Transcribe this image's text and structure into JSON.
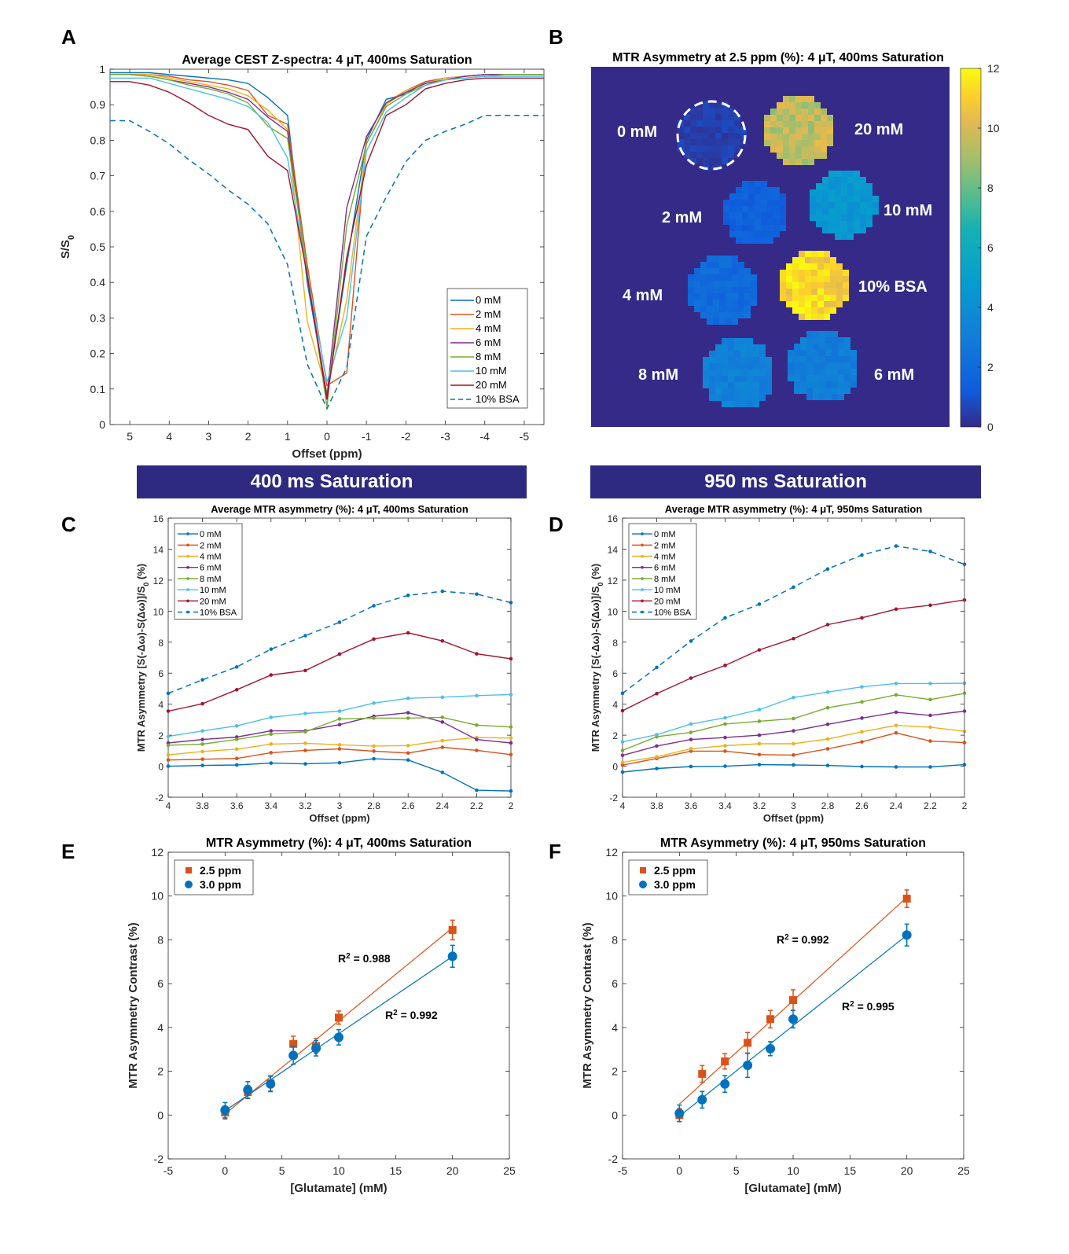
{
  "panels": {
    "A": "A",
    "B": "B",
    "C": "C",
    "D": "D",
    "E": "E",
    "F": "F"
  },
  "banners": {
    "left": "400 ms Saturation",
    "right": "950 ms Saturation"
  },
  "colors": {
    "0 mM": "#0072bd",
    "2 mM": "#d95319",
    "4 mM": "#edb120",
    "6 mM": "#7e2f8e",
    "8 mM": "#77ac30",
    "10 mM": "#4dbeee",
    "20 mM": "#a2142f",
    "10% BSA": "#0072bd",
    "banner": "#2e2a82"
  },
  "chart_data": [
    {
      "id": "A",
      "type": "line",
      "title": "Average CEST Z-spectra: 4μT, 400ms Saturation",
      "xlabel": "Offset (ppm)",
      "ylabel": "S/S0",
      "xlim": [
        5.5,
        -5.5
      ],
      "ylim": [
        0,
        1
      ],
      "xticks": [
        5,
        4,
        3,
        2,
        1,
        0,
        -1,
        -2,
        -3,
        -4,
        -5
      ],
      "xtick_labels": [
        "5",
        "4",
        "3",
        "2",
        "1",
        "0",
        "-1",
        "-2",
        "-3",
        "-4",
        "-5"
      ],
      "yticks": [
        0,
        0.1,
        0.2,
        0.3,
        0.4,
        0.5,
        0.6,
        0.7,
        0.8,
        0.9,
        1
      ],
      "ytick_labels": [
        "0",
        "0.1",
        "0.2",
        "0.3",
        "0.4",
        "0.5",
        "0.6",
        "0.7",
        "0.8",
        "0.9",
        "1"
      ],
      "legend_position": "bottom-right",
      "x": [
        5.5,
        5,
        4.5,
        4,
        3.5,
        3,
        2.5,
        2,
        1.5,
        1,
        0.5,
        0,
        -0.5,
        -1,
        -1.5,
        -2,
        -2.5,
        -3,
        -3.5,
        -4,
        -4.5,
        -5,
        -5.5
      ],
      "series": [
        {
          "name": "0 mM",
          "dashed": false,
          "values": [
            0.99,
            0.99,
            0.99,
            0.985,
            0.98,
            0.975,
            0.97,
            0.96,
            0.92,
            0.87,
            0.4,
            0.08,
            0.45,
            0.8,
            0.915,
            0.93,
            0.965,
            0.975,
            0.98,
            0.985,
            0.985,
            0.985,
            0.985
          ]
        },
        {
          "name": "2 mM",
          "dashed": false,
          "values": [
            0.985,
            0.985,
            0.985,
            0.98,
            0.97,
            0.965,
            0.955,
            0.94,
            0.87,
            0.845,
            0.45,
            0.11,
            0.145,
            0.81,
            0.905,
            0.94,
            0.965,
            0.975,
            0.98,
            0.985,
            0.985,
            0.985,
            0.985
          ]
        },
        {
          "name": "4 mM",
          "dashed": false,
          "values": [
            0.985,
            0.985,
            0.985,
            0.975,
            0.965,
            0.955,
            0.945,
            0.925,
            0.885,
            0.83,
            0.29,
            0.09,
            0.35,
            0.79,
            0.9,
            0.94,
            0.96,
            0.975,
            0.98,
            0.985,
            0.985,
            0.985,
            0.985
          ]
        },
        {
          "name": "6 mM",
          "dashed": false,
          "values": [
            0.985,
            0.985,
            0.98,
            0.97,
            0.96,
            0.95,
            0.935,
            0.915,
            0.865,
            0.825,
            0.42,
            0.08,
            0.61,
            0.81,
            0.905,
            0.935,
            0.96,
            0.97,
            0.98,
            0.985,
            0.985,
            0.985,
            0.985
          ]
        },
        {
          "name": "8 mM",
          "dashed": false,
          "values": [
            0.985,
            0.985,
            0.98,
            0.97,
            0.955,
            0.945,
            0.93,
            0.905,
            0.84,
            0.805,
            0.43,
            0.05,
            0.56,
            0.79,
            0.895,
            0.93,
            0.955,
            0.97,
            0.975,
            0.98,
            0.985,
            0.985,
            0.985
          ]
        },
        {
          "name": "10 mM",
          "dashed": false,
          "values": [
            0.975,
            0.975,
            0.975,
            0.96,
            0.945,
            0.93,
            0.915,
            0.895,
            0.85,
            0.75,
            0.42,
            0.12,
            0.3,
            0.77,
            0.88,
            0.92,
            0.955,
            0.97,
            0.975,
            0.98,
            0.98,
            0.98,
            0.98
          ]
        },
        {
          "name": "20 mM",
          "dashed": false,
          "values": [
            0.965,
            0.965,
            0.955,
            0.935,
            0.905,
            0.87,
            0.845,
            0.83,
            0.755,
            0.715,
            0.42,
            0.07,
            0.47,
            0.73,
            0.87,
            0.9,
            0.945,
            0.96,
            0.97,
            0.975,
            0.975,
            0.975,
            0.975
          ]
        },
        {
          "name": "10% BSA",
          "dashed": true,
          "values": [
            0.855,
            0.855,
            0.825,
            0.79,
            0.745,
            0.705,
            0.66,
            0.62,
            0.565,
            0.45,
            0.17,
            0.045,
            0.16,
            0.53,
            0.64,
            0.74,
            0.8,
            0.825,
            0.845,
            0.87,
            0.87,
            0.87,
            0.87
          ]
        }
      ]
    },
    {
      "id": "B",
      "type": "heatmap",
      "title": "MTR Asymmetry at 2.5 ppm (%): 4μT, 400ms Saturation",
      "colorbar_range": [
        0,
        12
      ],
      "colorbar_ticks": [
        0,
        2,
        4,
        6,
        8,
        10,
        12
      ],
      "colorbar_tick_labels": [
        "0",
        "2",
        "4",
        "6",
        "8",
        "10",
        "12"
      ],
      "background_value": 0,
      "vials": [
        {
          "label": "0 mM",
          "value": 0.5,
          "roi_marked": true,
          "label_side": "left"
        },
        {
          "label": "20 mM",
          "value": 9.5,
          "roi_marked": false,
          "label_side": "right"
        },
        {
          "label": "2 mM",
          "value": 1.5,
          "roi_marked": false,
          "label_side": "left"
        },
        {
          "label": "10 mM",
          "value": 4.5,
          "roi_marked": false,
          "label_side": "right"
        },
        {
          "label": "4 mM",
          "value": 2.0,
          "roi_marked": false,
          "label_side": "left"
        },
        {
          "label": "10% BSA",
          "value": 11.2,
          "roi_marked": false,
          "label_side": "right"
        },
        {
          "label": "8 mM",
          "value": 3.2,
          "roi_marked": false,
          "label_side": "left"
        },
        {
          "label": "6 mM",
          "value": 3.0,
          "roi_marked": false,
          "label_side": "right"
        }
      ]
    },
    {
      "id": "C",
      "type": "line",
      "title": "Average MTR asymmetry (%): 4μT, 400ms Saturation",
      "xlabel": "Offset (ppm)",
      "ylabel": "MTR Asymmetry [S(-Δω)-S(Δω)]/S0 (%)",
      "xlim": [
        4,
        2
      ],
      "ylim": [
        -2,
        16
      ],
      "xticks": [
        4,
        3.8,
        3.6,
        3.4,
        3.2,
        3,
        2.8,
        2.6,
        2.4,
        2.2,
        2
      ],
      "xtick_labels": [
        "4",
        "3.8",
        "3.6",
        "3.4",
        "3.2",
        "3",
        "2.8",
        "2.6",
        "2.4",
        "2.2",
        "2"
      ],
      "yticks": [
        -2,
        0,
        2,
        4,
        6,
        8,
        10,
        12,
        14,
        16
      ],
      "ytick_labels": [
        "-2",
        "0",
        "2",
        "4",
        "6",
        "8",
        "10",
        "12",
        "14",
        "16"
      ],
      "legend_position": "top-left",
      "x": [
        4,
        3.8,
        3.6,
        3.4,
        3.2,
        3,
        2.8,
        2.6,
        2.4,
        2.2,
        2
      ],
      "series": [
        {
          "name": "0 mM",
          "dashed": false,
          "values": [
            0.0,
            0.05,
            0.08,
            0.2,
            0.15,
            0.22,
            0.48,
            0.4,
            -0.4,
            -1.55,
            -1.6
          ]
        },
        {
          "name": "2 mM",
          "dashed": false,
          "values": [
            0.4,
            0.45,
            0.5,
            0.87,
            1.02,
            1.12,
            0.97,
            0.85,
            1.22,
            1.02,
            0.75
          ]
        },
        {
          "name": "4 mM",
          "dashed": false,
          "values": [
            0.73,
            0.95,
            1.1,
            1.43,
            1.48,
            1.38,
            1.3,
            1.33,
            1.65,
            1.85,
            1.82
          ]
        },
        {
          "name": "6 mM",
          "dashed": false,
          "values": [
            1.5,
            1.72,
            1.88,
            2.28,
            2.28,
            2.68,
            3.22,
            3.45,
            2.85,
            1.72,
            1.5
          ]
        },
        {
          "name": "8 mM",
          "dashed": false,
          "values": [
            1.35,
            1.42,
            1.73,
            2.07,
            2.22,
            3.05,
            3.1,
            3.1,
            3.15,
            2.65,
            2.53
          ]
        },
        {
          "name": "10 mM",
          "dashed": false,
          "values": [
            1.92,
            2.28,
            2.6,
            3.15,
            3.4,
            3.55,
            4.07,
            4.38,
            4.45,
            4.55,
            4.62
          ]
        },
        {
          "name": "20 mM",
          "dashed": false,
          "values": [
            3.55,
            4.03,
            4.93,
            5.88,
            6.17,
            7.23,
            8.2,
            8.6,
            8.08,
            7.25,
            6.93
          ]
        },
        {
          "name": "10% BSA",
          "dashed": true,
          "values": [
            4.7,
            5.57,
            6.4,
            7.55,
            8.42,
            9.28,
            10.35,
            11.02,
            11.28,
            11.1,
            10.55
          ]
        }
      ]
    },
    {
      "id": "D",
      "type": "line",
      "title": "Average MTR asymmetry (%): 4μT, 950ms Saturation",
      "xlabel": "Offset (ppm)",
      "ylabel": "MTR Asymmetry [S(-Δω)-S(Δω)]/S0 (%)",
      "xlim": [
        4,
        2
      ],
      "ylim": [
        -2,
        16
      ],
      "xticks": [
        4,
        3.8,
        3.6,
        3.4,
        3.2,
        3,
        2.8,
        2.6,
        2.4,
        2.2,
        2
      ],
      "xtick_labels": [
        "4",
        "3.8",
        "3.6",
        "3.4",
        "3.2",
        "3",
        "2.8",
        "2.6",
        "2.4",
        "2.2",
        "2"
      ],
      "yticks": [
        -2,
        0,
        2,
        4,
        6,
        8,
        10,
        12,
        14,
        16
      ],
      "ytick_labels": [
        "-2",
        "0",
        "2",
        "4",
        "6",
        "8",
        "10",
        "12",
        "14",
        "16"
      ],
      "legend_position": "top-left",
      "x": [
        4,
        3.8,
        3.6,
        3.4,
        3.2,
        3,
        2.8,
        2.6,
        2.4,
        2.2,
        2
      ],
      "series": [
        {
          "name": "0 mM",
          "dashed": false,
          "values": [
            -0.38,
            -0.15,
            -0.02,
            0.0,
            0.1,
            0.08,
            0.05,
            -0.02,
            -0.05,
            -0.05,
            0.1
          ]
        },
        {
          "name": "2 mM",
          "dashed": false,
          "values": [
            0.07,
            0.5,
            0.97,
            0.97,
            0.75,
            0.72,
            1.12,
            1.57,
            2.15,
            1.62,
            1.52
          ]
        },
        {
          "name": "4 mM",
          "dashed": false,
          "values": [
            0.25,
            0.6,
            1.13,
            1.32,
            1.45,
            1.45,
            1.75,
            2.22,
            2.63,
            2.52,
            2.25
          ]
        },
        {
          "name": "6 mM",
          "dashed": false,
          "values": [
            0.7,
            1.3,
            1.72,
            1.85,
            2.0,
            2.28,
            2.7,
            3.1,
            3.48,
            3.28,
            3.55
          ]
        },
        {
          "name": "8 mM",
          "dashed": false,
          "values": [
            1.02,
            1.9,
            2.18,
            2.72,
            2.9,
            3.07,
            3.77,
            4.15,
            4.6,
            4.3,
            4.7
          ]
        },
        {
          "name": "10 mM",
          "dashed": false,
          "values": [
            1.57,
            2.03,
            2.72,
            3.12,
            3.65,
            4.43,
            4.78,
            5.12,
            5.33,
            5.33,
            5.35
          ]
        },
        {
          "name": "20 mM",
          "dashed": false,
          "values": [
            3.58,
            4.68,
            5.68,
            6.5,
            7.5,
            8.23,
            9.13,
            9.57,
            10.13,
            10.38,
            10.72
          ]
        },
        {
          "name": "10% BSA",
          "dashed": true,
          "values": [
            4.7,
            6.37,
            8.07,
            9.57,
            10.45,
            11.55,
            12.72,
            13.62,
            14.2,
            13.85,
            13.02
          ]
        }
      ]
    },
    {
      "id": "E",
      "type": "scatter",
      "title": "MTR Asymmetry (%): 4μT, 400ms Saturation",
      "xlabel": "[Glutamate] (mM)",
      "ylabel": "MTR Asymmetry Contrast (%)",
      "xlim": [
        -5,
        25
      ],
      "ylim": [
        -2,
        12
      ],
      "xticks": [
        -5,
        0,
        5,
        10,
        15,
        20,
        25
      ],
      "xtick_labels": [
        "-5",
        "0",
        "5",
        "10",
        "15",
        "20",
        "25"
      ],
      "yticks": [
        -2,
        0,
        2,
        4,
        6,
        8,
        10,
        12
      ],
      "ytick_labels": [
        "-2",
        "0",
        "2",
        "4",
        "6",
        "8",
        "10",
        "12"
      ],
      "legend_position": "top-left",
      "x": [
        0,
        2,
        4,
        6,
        8,
        10,
        20
      ],
      "series": [
        {
          "name": "2.5 ppm",
          "marker": "square",
          "values": [
            0.12,
            1.05,
            1.45,
            3.25,
            3.15,
            4.45,
            8.45
          ],
          "errors": [
            0.3,
            0.3,
            0.35,
            0.35,
            0.35,
            0.3,
            0.45
          ],
          "fit": [
            0.05,
            0.425
          ],
          "r2_label": "R² = 0.988"
        },
        {
          "name": "3.0 ppm",
          "marker": "circle",
          "values": [
            0.22,
            1.15,
            1.42,
            2.72,
            3.05,
            3.55,
            7.25
          ],
          "errors": [
            0.35,
            0.38,
            0.35,
            0.4,
            0.35,
            0.35,
            0.5
          ],
          "fit": [
            0.2,
            0.352
          ],
          "r2_label": "R² = 0.992"
        }
      ]
    },
    {
      "id": "F",
      "type": "scatter",
      "title": "MTR Asymmetry (%): 4μT, 950ms Saturation",
      "xlabel": "[Glutamate] (mM)",
      "ylabel": "MTR Asymmetry Contrast (%)",
      "xlim": [
        -5,
        25
      ],
      "ylim": [
        -2,
        12
      ],
      "xticks": [
        -5,
        0,
        5,
        10,
        15,
        20,
        25
      ],
      "xtick_labels": [
        "-5",
        "0",
        "5",
        "10",
        "15",
        "20",
        "25"
      ],
      "yticks": [
        -2,
        0,
        2,
        4,
        6,
        8,
        10,
        12
      ],
      "ytick_labels": [
        "-2",
        "0",
        "2",
        "4",
        "6",
        "8",
        "10",
        "12"
      ],
      "legend_position": "top-left",
      "x": [
        0,
        2,
        4,
        6,
        8,
        10,
        20
      ],
      "series": [
        {
          "name": "2.5 ppm",
          "marker": "square",
          "values": [
            0.0,
            1.88,
            2.45,
            3.3,
            4.38,
            5.25,
            9.88
          ],
          "errors": [
            0.3,
            0.38,
            0.35,
            0.47,
            0.4,
            0.47,
            0.4
          ],
          "fit": [
            0.5,
            0.472
          ],
          "r2_label": "R² = 0.992"
        },
        {
          "name": "3.0 ppm",
          "marker": "circle",
          "values": [
            0.08,
            0.7,
            1.42,
            2.27,
            3.03,
            4.38,
            8.22
          ],
          "errors": [
            0.38,
            0.38,
            0.38,
            0.55,
            0.32,
            0.4,
            0.5
          ],
          "fit": [
            -0.05,
            0.413
          ],
          "r2_label": "R² = 0.995"
        }
      ]
    }
  ]
}
